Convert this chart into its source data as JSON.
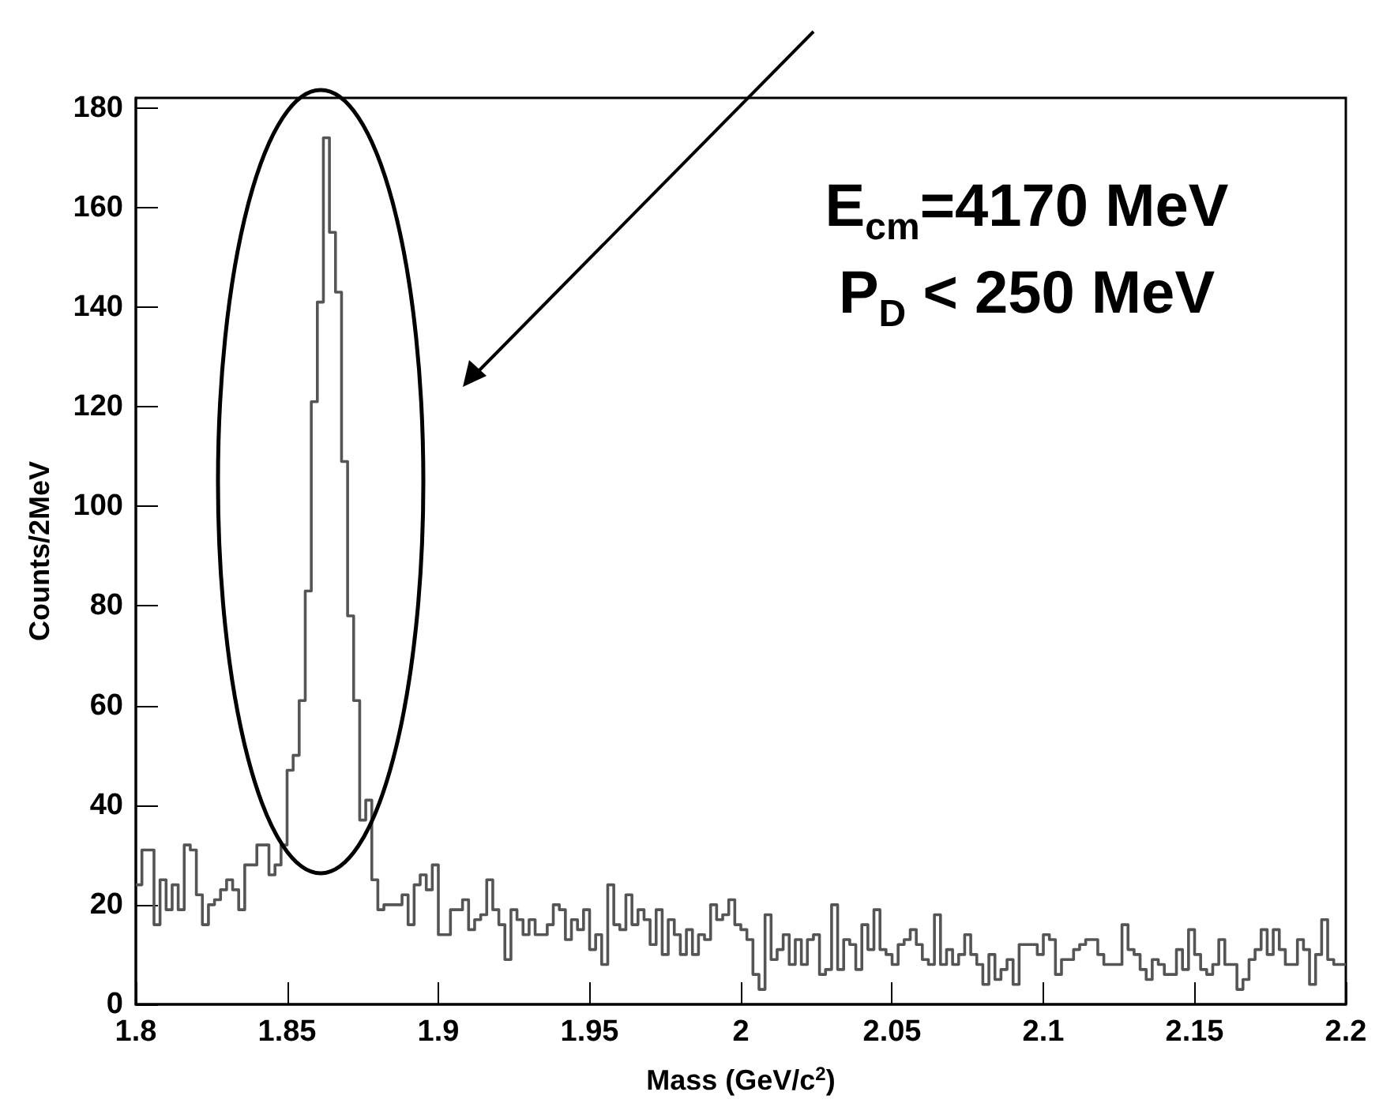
{
  "chart_data": {
    "type": "histogram",
    "xlabel": "Mass (GeV/c$^{2}$)",
    "ylabel": "Counts/2MeV",
    "annotations": [
      "E$_{cm}$=4170 MeV",
      "P$_{D}$ < 250 MeV"
    ],
    "color": "#555555",
    "bins": [
      1.8,
      1.802,
      1.804,
      1.806,
      1.808,
      1.81,
      1.812,
      1.814,
      1.816,
      1.818,
      1.82,
      1.822,
      1.824,
      1.826,
      1.828,
      1.83,
      1.832,
      1.834,
      1.836,
      1.838,
      1.84,
      1.842,
      1.844,
      1.846,
      1.848,
      1.85,
      1.852,
      1.854,
      1.856,
      1.858,
      1.86,
      1.862,
      1.864,
      1.866,
      1.868,
      1.87,
      1.872,
      1.874,
      1.876,
      1.878,
      1.88,
      1.882,
      1.884,
      1.886,
      1.888,
      1.89,
      1.892,
      1.894,
      1.896,
      1.898,
      1.9,
      1.902,
      1.904,
      1.906,
      1.908,
      1.91,
      1.912,
      1.914,
      1.916,
      1.918,
      1.92,
      1.922,
      1.924,
      1.926,
      1.928,
      1.93,
      1.932,
      1.934,
      1.936,
      1.938,
      1.94,
      1.942,
      1.944,
      1.946,
      1.948,
      1.95,
      1.952,
      1.954,
      1.956,
      1.958,
      1.96,
      1.962,
      1.964,
      1.966,
      1.968,
      1.97,
      1.972,
      1.974,
      1.976,
      1.978,
      1.98,
      1.982,
      1.984,
      1.986,
      1.988,
      1.99,
      1.992,
      1.994,
      1.996,
      1.998,
      2,
      2.002,
      2.004,
      2.006,
      2.008,
      2.01,
      2.012,
      2.014,
      2.016,
      2.018,
      2.02,
      2.022,
      2.024,
      2.026,
      2.028,
      2.03,
      2.032,
      2.034,
      2.036,
      2.038,
      2.04,
      2.042,
      2.044,
      2.046,
      2.048,
      2.05,
      2.052,
      2.054,
      2.056,
      2.058,
      2.06,
      2.062,
      2.064,
      2.066,
      2.068,
      2.07,
      2.072,
      2.074,
      2.076,
      2.078,
      2.08,
      2.082,
      2.084,
      2.086,
      2.088,
      2.09,
      2.092,
      2.094,
      2.096,
      2.098,
      2.1,
      2.102,
      2.104,
      2.106,
      2.108,
      2.11,
      2.112,
      2.114,
      2.116,
      2.118,
      2.12,
      2.122,
      2.124,
      2.126,
      2.128,
      2.13,
      2.132,
      2.134,
      2.136,
      2.138,
      2.14,
      2.142,
      2.144,
      2.146,
      2.148,
      2.15,
      2.152,
      2.154,
      2.156,
      2.158,
      2.16,
      2.162,
      2.164,
      2.166,
      2.168,
      2.17,
      2.172,
      2.174,
      2.176,
      2.178,
      2.18,
      2.182,
      2.184,
      2.186,
      2.188,
      2.19,
      2.192,
      2.194,
      2.196,
      2.198,
      2.2
    ],
    "values": [
      24,
      31,
      31,
      16,
      25,
      19,
      24,
      19,
      32,
      31,
      22,
      16,
      20,
      21,
      23,
      25,
      23,
      19,
      28,
      28,
      32,
      32,
      26,
      28,
      32,
      47,
      50,
      61,
      83,
      121,
      141,
      174,
      155,
      143,
      109,
      78,
      61,
      37,
      41,
      25,
      19,
      20,
      20,
      20,
      22,
      16,
      24,
      26,
      23,
      28,
      14,
      14,
      19,
      19,
      21,
      15,
      17,
      18,
      25,
      19,
      16,
      9,
      19,
      17,
      14,
      17,
      14,
      14,
      16,
      20,
      19,
      13,
      17,
      15,
      19,
      11,
      14,
      8,
      24,
      16,
      15,
      22,
      16,
      19,
      17,
      12,
      19,
      10,
      17,
      14,
      10,
      15,
      10,
      14,
      13,
      20,
      17,
      18,
      21,
      16,
      15,
      13,
      6,
      3,
      18,
      9,
      11,
      14,
      8,
      13,
      8,
      13,
      14,
      6,
      7,
      20,
      7,
      13,
      12,
      7,
      16,
      11,
      19,
      11,
      10,
      8,
      12,
      13,
      15,
      12,
      9,
      8,
      18,
      8,
      11,
      8,
      10,
      14,
      10,
      8,
      4,
      10,
      5,
      7,
      9,
      4,
      12,
      12,
      12,
      10,
      14,
      13,
      6,
      9,
      9,
      11,
      12,
      13,
      13,
      10,
      8,
      8,
      8,
      16,
      11,
      10,
      7,
      5,
      9,
      8,
      6,
      6,
      11,
      7,
      15,
      10,
      7,
      6,
      8,
      13,
      8,
      8,
      3,
      5,
      9,
      11,
      15,
      10,
      15,
      11,
      8,
      8,
      13,
      11,
      4,
      10,
      17,
      9,
      8,
      8
    ],
    "xlim": [
      1.8,
      2.2
    ],
    "xticks": [
      1.8,
      1.85,
      1.9,
      1.95,
      2,
      2.05,
      2.1,
      2.15,
      2.2
    ],
    "ylim": [
      0,
      182
    ],
    "yticks": [
      0,
      20,
      40,
      60,
      80,
      100,
      120,
      140,
      160,
      180
    ]
  }
}
